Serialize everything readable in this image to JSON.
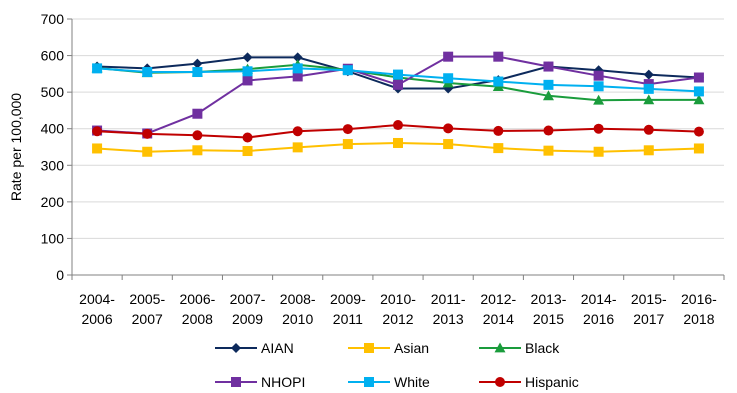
{
  "chart_data": {
    "type": "line",
    "title": "",
    "xlabel": "",
    "ylabel": "Rate per 100,000",
    "ylim": [
      0,
      700
    ],
    "yticks": [
      0,
      100,
      200,
      300,
      400,
      500,
      600,
      700
    ],
    "grid": "horizontal",
    "legend_position": "bottom",
    "categories": [
      [
        "2004-",
        "2006"
      ],
      [
        "2005-",
        "2007"
      ],
      [
        "2006-",
        "2008"
      ],
      [
        "2007-",
        "2009"
      ],
      [
        "2008-",
        "2010"
      ],
      [
        "2009-",
        "2011"
      ],
      [
        "2010-",
        "2012"
      ],
      [
        "2011-",
        "2013"
      ],
      [
        "2012-",
        "2014"
      ],
      [
        "2013-",
        "2015"
      ],
      [
        "2014-",
        "2016"
      ],
      [
        "2015-",
        "2017"
      ],
      [
        "2016-",
        "2018"
      ]
    ],
    "series": [
      {
        "name": "AIAN",
        "color": "#0d2a5c",
        "marker": "diamond",
        "values": [
          570,
          565,
          578,
          595,
          595,
          557,
          510,
          510,
          533,
          570,
          560,
          548,
          540
        ]
      },
      {
        "name": "Asian",
        "color": "#ffc000",
        "marker": "square",
        "values": [
          346,
          337,
          341,
          339,
          349,
          358,
          361,
          358,
          347,
          340,
          337,
          341,
          346
        ]
      },
      {
        "name": "Black",
        "color": "#1a9c3c",
        "marker": "triangle",
        "values": [
          566,
          553,
          555,
          563,
          575,
          561,
          540,
          525,
          515,
          490,
          478,
          479,
          479
        ]
      },
      {
        "name": "NHOPI",
        "color": "#7030a0",
        "marker": "square",
        "values": [
          395,
          387,
          441,
          532,
          543,
          564,
          520,
          597,
          597,
          570,
          545,
          522,
          540
        ]
      },
      {
        "name": "White",
        "color": "#00b0f0",
        "marker": "square",
        "values": [
          565,
          555,
          555,
          557,
          565,
          560,
          548,
          538,
          529,
          520,
          516,
          509,
          502
        ]
      },
      {
        "name": "Hispanic",
        "color": "#c00000",
        "marker": "circle",
        "values": [
          393,
          386,
          382,
          376,
          393,
          399,
          410,
          401,
          394,
          395,
          400,
          397,
          392
        ]
      }
    ]
  }
}
